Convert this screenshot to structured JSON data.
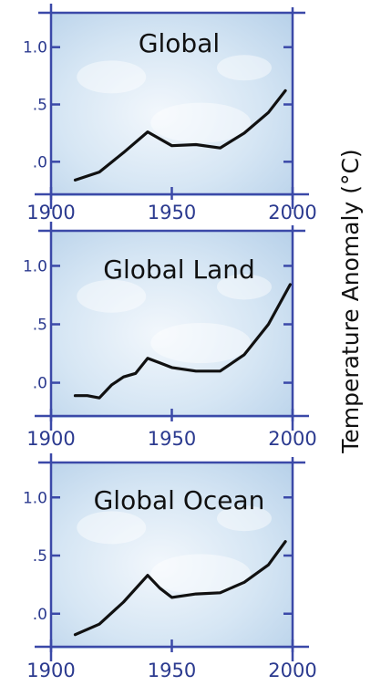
{
  "figure": {
    "side_label": "Temperature Anomaly (°C)",
    "colors": {
      "frame": "#3b49a8",
      "panel_fill": "#c7dcef",
      "panel_fill_light": "#e9f2fa",
      "line": "#111111",
      "tick_text": "#2b3a8f",
      "accent": "#d1164d"
    }
  },
  "chart_data": [
    {
      "type": "line",
      "title": "Global",
      "xlim": [
        1900,
        2000
      ],
      "ylim": [
        -0.3,
        1.3
      ],
      "x_ticks": [
        1900,
        1950,
        2000
      ],
      "x_tick_labels": [
        "1900",
        "1950",
        "2000"
      ],
      "y_ticks": [
        1.0,
        0.5,
        0.0
      ],
      "y_tick_labels": [
        "1.0",
        ".5",
        ".0"
      ],
      "series": [
        {
          "x": [
            1910,
            1920,
            1930,
            1940,
            1950,
            1960,
            1970,
            1980,
            1990,
            1997
          ],
          "y": [
            -0.16,
            -0.09,
            0.08,
            0.26,
            0.14,
            0.15,
            0.12,
            0.25,
            0.43,
            0.62
          ]
        }
      ]
    },
    {
      "type": "line",
      "title": "Global Land",
      "xlim": [
        1900,
        2000
      ],
      "ylim": [
        -0.3,
        1.3
      ],
      "x_ticks": [
        1900,
        1950,
        2000
      ],
      "x_tick_labels": [
        "1900",
        "1950",
        "2000"
      ],
      "y_ticks": [
        1.0,
        0.5,
        0.0
      ],
      "y_tick_labels": [
        "1.0",
        ".5",
        ".0"
      ],
      "series": [
        {
          "x": [
            1910,
            1915,
            1920,
            1925,
            1930,
            1935,
            1940,
            1945,
            1950,
            1960,
            1970,
            1980,
            1990,
            1999
          ],
          "y": [
            -0.11,
            -0.11,
            -0.13,
            -0.02,
            0.05,
            0.08,
            0.21,
            0.17,
            0.13,
            0.1,
            0.1,
            0.24,
            0.5,
            0.84
          ]
        }
      ]
    },
    {
      "type": "line",
      "title": "Global Ocean",
      "xlim": [
        1900,
        2000
      ],
      "ylim": [
        -0.3,
        1.3
      ],
      "x_ticks": [
        1900,
        1950,
        2000
      ],
      "x_tick_labels": [
        "1900",
        "1950",
        "2000"
      ],
      "y_ticks": [
        1.0,
        0.5,
        0.0
      ],
      "y_tick_labels": [
        "1.0",
        ".5",
        ".0"
      ],
      "series": [
        {
          "x": [
            1910,
            1920,
            1930,
            1940,
            1945,
            1950,
            1960,
            1970,
            1980,
            1990,
            1997
          ],
          "y": [
            -0.18,
            -0.09,
            0.1,
            0.33,
            0.22,
            0.14,
            0.17,
            0.18,
            0.27,
            0.42,
            0.62
          ]
        }
      ]
    }
  ]
}
